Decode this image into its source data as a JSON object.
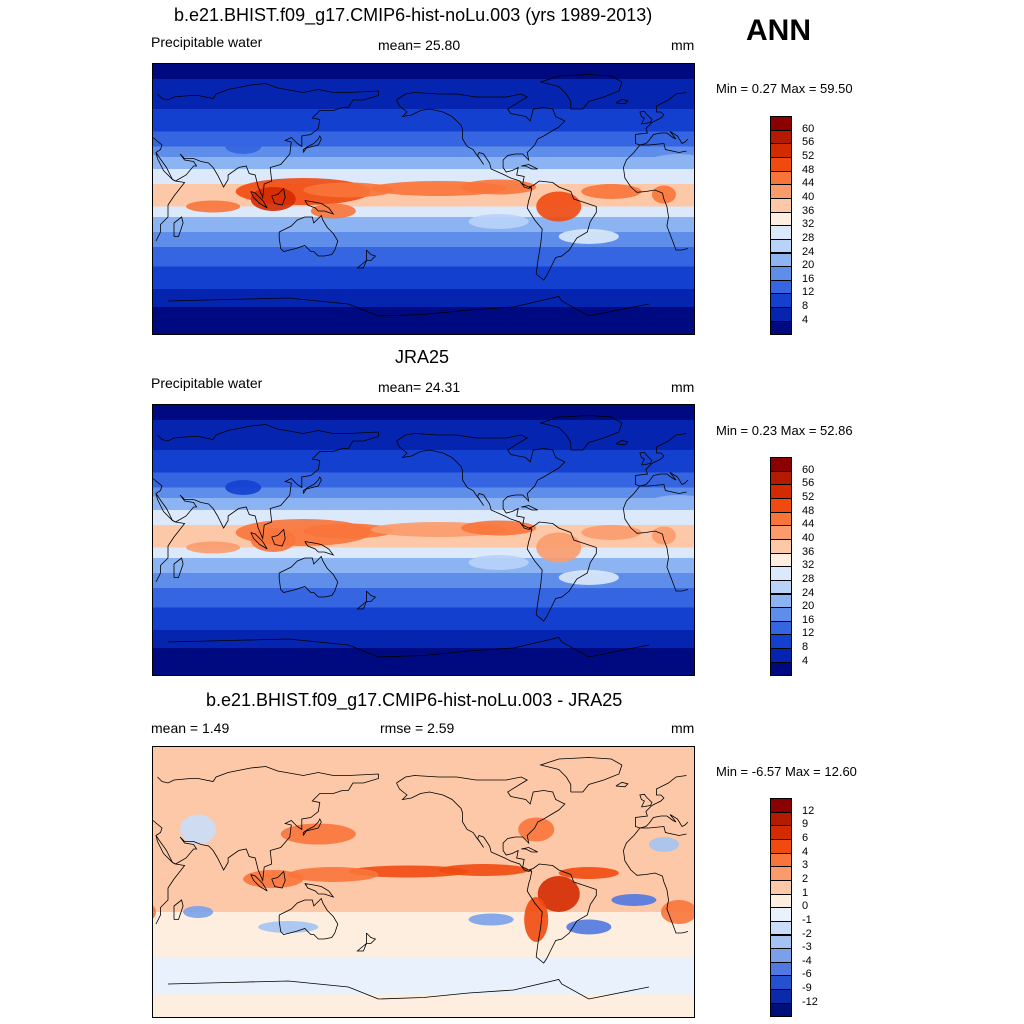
{
  "season": "ANN",
  "panels": [
    {
      "title": "b.e21.BHIST.f09_g17.CMIP6-hist-noLu.003 (yrs 1989-2013)",
      "left_label": "Precipitable water",
      "center_label": "mean=  25.80",
      "units": "mm",
      "minmax": "Min =   0.27 Max =  59.50",
      "field": "model",
      "colorbar": {
        "labels": [
          "60",
          "56",
          "52",
          "48",
          "44",
          "40",
          "36",
          "32",
          "28",
          "24",
          "20",
          "16",
          "12",
          "8",
          "4"
        ],
        "colors": [
          "#8b0000",
          "#b31a00",
          "#d42a00",
          "#f04a10",
          "#f8743a",
          "#fb9b6c",
          "#fcc8a8",
          "#fdeee0",
          "#dce9fb",
          "#b8d2f8",
          "#8db4f2",
          "#5f8eea",
          "#3565e0",
          "#1440d0",
          "#0525b0",
          "#000a80"
        ]
      }
    },
    {
      "title": "JRA25",
      "left_label": "Precipitable water",
      "center_label": "mean=  24.31",
      "units": "mm",
      "minmax": "Min =   0.23 Max =  52.86",
      "field": "obs",
      "colorbar": {
        "labels": [
          "60",
          "56",
          "52",
          "48",
          "44",
          "40",
          "36",
          "32",
          "28",
          "24",
          "20",
          "16",
          "12",
          "8",
          "4"
        ],
        "colors": [
          "#8b0000",
          "#b31a00",
          "#d42a00",
          "#f04a10",
          "#f8743a",
          "#fb9b6c",
          "#fcc8a8",
          "#fdeee0",
          "#dce9fb",
          "#b8d2f8",
          "#8db4f2",
          "#5f8eea",
          "#3565e0",
          "#1440d0",
          "#0525b0",
          "#000a80"
        ]
      }
    },
    {
      "title": "b.e21.BHIST.f09_g17.CMIP6-hist-noLu.003 - JRA25",
      "left_label": "mean =   1.49",
      "center_label": "rmse =   2.59",
      "units": "mm",
      "minmax": "Min =  -6.57 Max =  12.60",
      "field": "diff",
      "colorbar": {
        "labels": [
          "12",
          "9",
          "6",
          "4",
          "3",
          "2",
          "1",
          "0",
          "-1",
          "-2",
          "-3",
          "-4",
          "-6",
          "-9",
          "-12"
        ],
        "colors": [
          "#8b0000",
          "#b31a00",
          "#d42a00",
          "#f04a10",
          "#f8743a",
          "#fb9b6c",
          "#fcc8a8",
          "#fdeee0",
          "#e9f1fc",
          "#c9ddf8",
          "#a4c3f2",
          "#7aa0ea",
          "#4f78e0",
          "#2550d0",
          "#0a2aa8",
          "#00107a"
        ]
      }
    }
  ]
}
